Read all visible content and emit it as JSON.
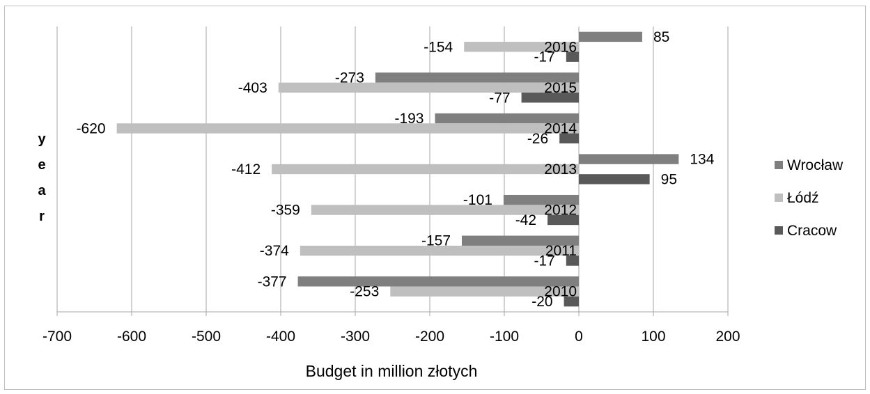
{
  "chart_data": {
    "type": "bar",
    "orientation": "horizontal",
    "categories": [
      "2010",
      "2011",
      "2012",
      "2013",
      "2014",
      "2015",
      "2016"
    ],
    "series": [
      {
        "name": "Wrocław",
        "values": [
          -377,
          -157,
          -101,
          134,
          -193,
          -273,
          85
        ],
        "color": "#7f7f7f"
      },
      {
        "name": "Łódź",
        "values": [
          -253,
          -374,
          -359,
          -412,
          -620,
          -403,
          -154
        ],
        "color": "#bfbfbf"
      },
      {
        "name": "Cracow",
        "values": [
          -20,
          -17,
          -42,
          95,
          -26,
          -77,
          -17
        ],
        "color": "#595959"
      }
    ],
    "xlabel": "Budget in million złotych",
    "ylabel": "year",
    "xlim": [
      -700,
      200
    ],
    "xticks": [
      -700,
      -600,
      -500,
      -400,
      -300,
      -200,
      -100,
      0,
      100,
      200
    ],
    "grid": "vertical",
    "legend": "right"
  }
}
